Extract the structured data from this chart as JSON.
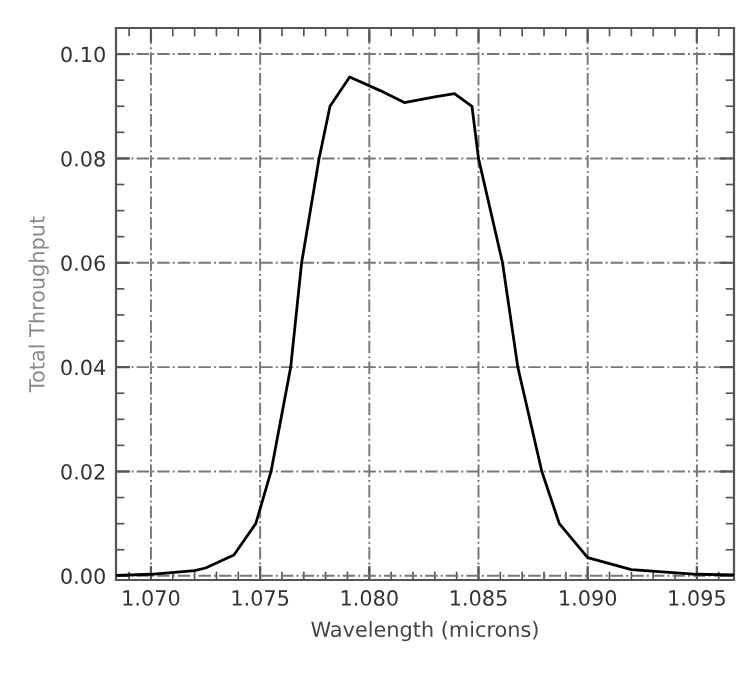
{
  "chart_data": {
    "type": "line",
    "xlabel": "Wavelength (microns)",
    "ylabel": "Total Throughput",
    "x": [
      1.0684,
      1.07,
      1.072,
      1.0725,
      1.0738,
      1.0748,
      1.0755,
      1.0764,
      1.0769,
      1.0777,
      1.0782,
      1.0791,
      1.0805,
      1.0816,
      1.083,
      1.0839,
      1.0847,
      1.085,
      1.0861,
      1.0868,
      1.0879,
      1.0887,
      1.09,
      1.092,
      1.095,
      1.0967
    ],
    "series": [
      {
        "color": "#000000",
        "values": [
          0.0001,
          0.0003,
          0.001,
          0.0015,
          0.004,
          0.01,
          0.02,
          0.04,
          0.06,
          0.08,
          0.09,
          0.0956,
          0.093,
          0.0907,
          0.0918,
          0.0924,
          0.09,
          0.08,
          0.06,
          0.04,
          0.02,
          0.01,
          0.0035,
          0.0012,
          0.0003,
          0.0002
        ]
      }
    ],
    "xlim": [
      1.0684,
      1.0967
    ],
    "ylim": [
      -0.0008,
      0.105
    ],
    "xticks": [
      {
        "value": 1.07,
        "label": "1.070"
      },
      {
        "value": 1.075,
        "label": "1.075"
      },
      {
        "value": 1.08,
        "label": "1.080"
      },
      {
        "value": 1.085,
        "label": "1.085"
      },
      {
        "value": 1.09,
        "label": "1.090"
      },
      {
        "value": 1.095,
        "label": "1.095"
      }
    ],
    "yticks": [
      {
        "value": 0.0,
        "label": "0.00"
      },
      {
        "value": 0.02,
        "label": "0.02"
      },
      {
        "value": 0.04,
        "label": "0.04"
      },
      {
        "value": 0.06,
        "label": "0.06"
      },
      {
        "value": 0.08,
        "label": "0.08"
      },
      {
        "value": 0.1,
        "label": "0.10"
      }
    ],
    "grid": true,
    "line_style": "solid",
    "marker": "none"
  }
}
